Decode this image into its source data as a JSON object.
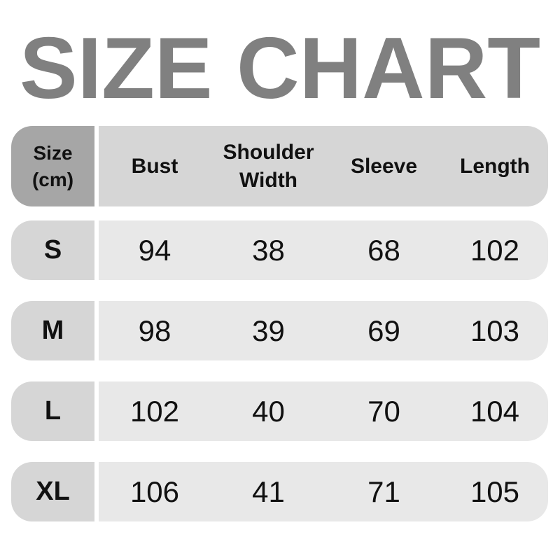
{
  "title": "SIZE CHART",
  "header": {
    "size": "Size\n(cm)",
    "size_line1": "Size",
    "size_line2": "(cm)",
    "columns": [
      "Bust",
      "Shoulder Width",
      "Sleeve",
      "Length"
    ]
  },
  "rows": [
    {
      "size": "S",
      "values": [
        "94",
        "38",
        "68",
        "102"
      ]
    },
    {
      "size": "M",
      "values": [
        "98",
        "39",
        "69",
        "103"
      ]
    },
    {
      "size": "L",
      "values": [
        "102",
        "40",
        "70",
        "104"
      ]
    },
    {
      "size": "XL",
      "values": [
        "106",
        "41",
        "71",
        "105"
      ]
    }
  ],
  "colors": {
    "title": "#808080",
    "header_size_bg": "#a6a6a6",
    "header_bg": "#d6d6d6",
    "row_size_bg": "#d6d6d6",
    "row_bg": "#e8e8e8"
  }
}
